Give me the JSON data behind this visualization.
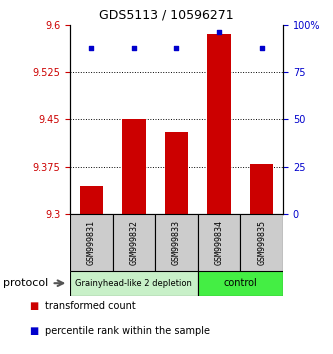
{
  "title": "GDS5113 / 10596271",
  "samples": [
    "GSM999831",
    "GSM999832",
    "GSM999833",
    "GSM999834",
    "GSM999835"
  ],
  "bar_values": [
    9.345,
    9.45,
    9.43,
    9.585,
    9.38
  ],
  "bar_baseline": 9.3,
  "percentile_values": [
    88,
    88,
    88,
    96,
    88
  ],
  "ylim_left": [
    9.3,
    9.6
  ],
  "ylim_right": [
    0,
    100
  ],
  "yticks_left": [
    9.3,
    9.375,
    9.45,
    9.525,
    9.6
  ],
  "yticks_right": [
    0,
    25,
    50,
    75,
    100
  ],
  "ytick_labels_left": [
    "9.3",
    "9.375",
    "9.45",
    "9.525",
    "9.6"
  ],
  "ytick_labels_right": [
    "0",
    "25",
    "50",
    "75",
    "100%"
  ],
  "grid_lines": [
    9.375,
    9.45,
    9.525
  ],
  "bar_color": "#cc0000",
  "percentile_color": "#0000cc",
  "left_tick_color": "#cc0000",
  "right_tick_color": "#0000cc",
  "group1_samples": [
    0,
    1,
    2
  ],
  "group2_samples": [
    3,
    4
  ],
  "group1_label": "Grainyhead-like 2 depletion",
  "group2_label": "control",
  "group1_color": "#c8f0c8",
  "group2_color": "#44ee44",
  "protocol_label": "protocol",
  "legend_bar_label": "transformed count",
  "legend_pct_label": "percentile rank within the sample",
  "bar_width": 0.55,
  "sample_box_color": "#cccccc",
  "title_fontsize": 9,
  "tick_fontsize": 7,
  "sample_fontsize": 6,
  "group_fontsize1": 6,
  "group_fontsize2": 7,
  "legend_fontsize": 7,
  "protocol_fontsize": 8
}
